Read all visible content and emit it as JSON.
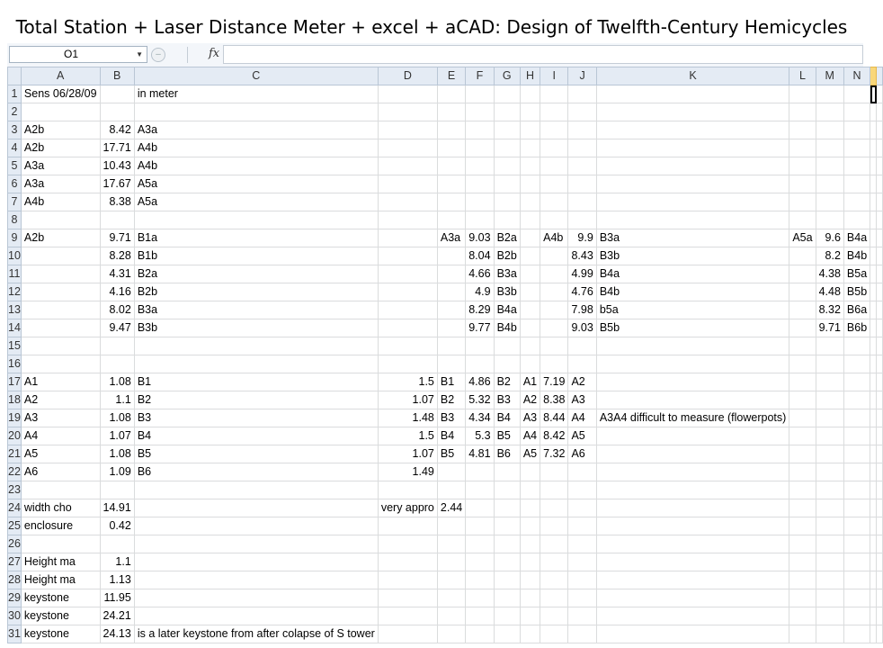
{
  "slide": {
    "title": "Total Station + Laser Distance Meter + excel + aCAD: Design of Twelfth-Century Hemicycles"
  },
  "formula_bar": {
    "name_box": "O1",
    "fx": "fx",
    "value": ""
  },
  "columns": [
    "A",
    "B",
    "C",
    "D",
    "E",
    "F",
    "G",
    "H",
    "I",
    "J",
    "K",
    "L",
    "M",
    "N",
    ""
  ],
  "selected_column": 14,
  "rows": [
    {
      "n": "1",
      "c": [
        "Sens 06/28/09",
        "",
        "in meter",
        "",
        "",
        "",
        "",
        "",
        "",
        "",
        "",
        "",
        "",
        "",
        ""
      ]
    },
    {
      "n": "2",
      "c": [
        "",
        "",
        "",
        "",
        "",
        "",
        "",
        "",
        "",
        "",
        "",
        "",
        "",
        "",
        ""
      ]
    },
    {
      "n": "3",
      "c": [
        "A2b",
        "8.42",
        "A3a",
        "",
        "",
        "",
        "",
        "",
        "",
        "",
        "",
        "",
        "",
        "",
        ""
      ]
    },
    {
      "n": "4",
      "c": [
        "A2b",
        "17.71",
        "A4b",
        "",
        "",
        "",
        "",
        "",
        "",
        "",
        "",
        "",
        "",
        "",
        ""
      ]
    },
    {
      "n": "5",
      "c": [
        "A3a",
        "10.43",
        "A4b",
        "",
        "",
        "",
        "",
        "",
        "",
        "",
        "",
        "",
        "",
        "",
        ""
      ]
    },
    {
      "n": "6",
      "c": [
        "A3a",
        "17.67",
        "A5a",
        "",
        "",
        "",
        "",
        "",
        "",
        "",
        "",
        "",
        "",
        "",
        ""
      ]
    },
    {
      "n": "7",
      "c": [
        "A4b",
        "8.38",
        "A5a",
        "",
        "",
        "",
        "",
        "",
        "",
        "",
        "",
        "",
        "",
        "",
        ""
      ]
    },
    {
      "n": "8",
      "c": [
        "",
        "",
        "",
        "",
        "",
        "",
        "",
        "",
        "",
        "",
        "",
        "",
        "",
        "",
        ""
      ]
    },
    {
      "n": "9",
      "c": [
        "A2b",
        "9.71",
        "B1a",
        "",
        "A3a",
        "9.03",
        "B2a",
        "",
        "A4b",
        "9.9",
        "B3a",
        "A5a",
        "9.6",
        "B4a",
        ""
      ]
    },
    {
      "n": "10",
      "c": [
        "",
        "8.28",
        "B1b",
        "",
        "",
        "8.04",
        "B2b",
        "",
        "",
        "8.43",
        "B3b",
        "",
        "8.2",
        "B4b",
        ""
      ]
    },
    {
      "n": "11",
      "c": [
        "",
        "4.31",
        "B2a",
        "",
        "",
        "4.66",
        "B3a",
        "",
        "",
        "4.99",
        "B4a",
        "",
        "4.38",
        "B5a",
        ""
      ]
    },
    {
      "n": "12",
      "c": [
        "",
        "4.16",
        "B2b",
        "",
        "",
        "4.9",
        "B3b",
        "",
        "",
        "4.76",
        "B4b",
        "",
        "4.48",
        "B5b",
        ""
      ]
    },
    {
      "n": "13",
      "c": [
        "",
        "8.02",
        "B3a",
        "",
        "",
        "8.29",
        "B4a",
        "",
        "",
        "7.98",
        "b5a",
        "",
        "8.32",
        "B6a",
        ""
      ]
    },
    {
      "n": "14",
      "c": [
        "",
        "9.47",
        "B3b",
        "",
        "",
        "9.77",
        "B4b",
        "",
        "",
        "9.03",
        "B5b",
        "",
        "9.71",
        "B6b",
        ""
      ]
    },
    {
      "n": "15",
      "c": [
        "",
        "",
        "",
        "",
        "",
        "",
        "",
        "",
        "",
        "",
        "",
        "",
        "",
        "",
        ""
      ]
    },
    {
      "n": "16",
      "c": [
        "",
        "",
        "",
        "",
        "",
        "",
        "",
        "",
        "",
        "",
        "",
        "",
        "",
        "",
        ""
      ]
    },
    {
      "n": "17",
      "c": [
        "A1",
        "1.08",
        "B1",
        "1.5",
        "B1",
        "4.86",
        "B2",
        "A1",
        "7.19",
        "A2",
        "",
        "",
        "",
        "",
        ""
      ]
    },
    {
      "n": "18",
      "c": [
        "A2",
        "1.1",
        "B2",
        "1.07",
        "B2",
        "5.32",
        "B3",
        "A2",
        "8.38",
        "A3",
        "",
        "",
        "",
        "",
        ""
      ]
    },
    {
      "n": "19",
      "c": [
        "A3",
        "1.08",
        "B3",
        "1.48",
        "B3",
        "4.34",
        "B4",
        "A3",
        "8.44",
        "A4",
        "A3A4 difficult to measure (flowerpots)",
        "",
        "",
        "",
        ""
      ]
    },
    {
      "n": "20",
      "c": [
        "A4",
        "1.07",
        "B4",
        "1.5",
        "B4",
        "5.3",
        "B5",
        "A4",
        "8.42",
        "A5",
        "",
        "",
        "",
        "",
        ""
      ]
    },
    {
      "n": "21",
      "c": [
        "A5",
        "1.08",
        "B5",
        "1.07",
        "B5",
        "4.81",
        "B6",
        "A5",
        "7.32",
        "A6",
        "",
        "",
        "",
        "",
        ""
      ]
    },
    {
      "n": "22",
      "c": [
        "A6",
        "1.09",
        "B6",
        "1.49",
        "",
        "",
        "",
        "",
        "",
        "",
        "",
        "",
        "",
        "",
        ""
      ]
    },
    {
      "n": "23",
      "c": [
        "",
        "",
        "",
        "",
        "",
        "",
        "",
        "",
        "",
        "",
        "",
        "",
        "",
        "",
        ""
      ]
    },
    {
      "n": "24",
      "c": [
        "width cho",
        "14.91",
        "",
        "very appro",
        "2.44",
        "",
        "",
        "",
        "",
        "",
        "",
        "",
        "",
        "",
        ""
      ]
    },
    {
      "n": "25",
      "c": [
        "enclosure",
        "0.42",
        "",
        "",
        "",
        "",
        "",
        "",
        "",
        "",
        "",
        "",
        "",
        "",
        ""
      ]
    },
    {
      "n": "26",
      "c": [
        "",
        "",
        "",
        "",
        "",
        "",
        "",
        "",
        "",
        "",
        "",
        "",
        "",
        "",
        ""
      ]
    },
    {
      "n": "27",
      "c": [
        "Height ma",
        "1.1",
        "",
        "",
        "",
        "",
        "",
        "",
        "",
        "",
        "",
        "",
        "",
        "",
        ""
      ]
    },
    {
      "n": "28",
      "c": [
        "Height ma",
        "1.13",
        "",
        "",
        "",
        "",
        "",
        "",
        "",
        "",
        "",
        "",
        "",
        "",
        ""
      ]
    },
    {
      "n": "29",
      "c": [
        "keystone",
        "11.95",
        "",
        "",
        "",
        "",
        "",
        "",
        "",
        "",
        "",
        "",
        "",
        "",
        ""
      ]
    },
    {
      "n": "30",
      "c": [
        "keystone",
        "24.21",
        "",
        "",
        "",
        "",
        "",
        "",
        "",
        "",
        "",
        "",
        "",
        "",
        ""
      ]
    },
    {
      "n": "31",
      "c": [
        "keystone",
        "24.13",
        "is a later keystone from after colapse of S tower",
        "",
        "",
        "",
        "",
        "",
        "",
        "",
        "",
        "",
        "",
        "",
        ""
      ]
    }
  ]
}
